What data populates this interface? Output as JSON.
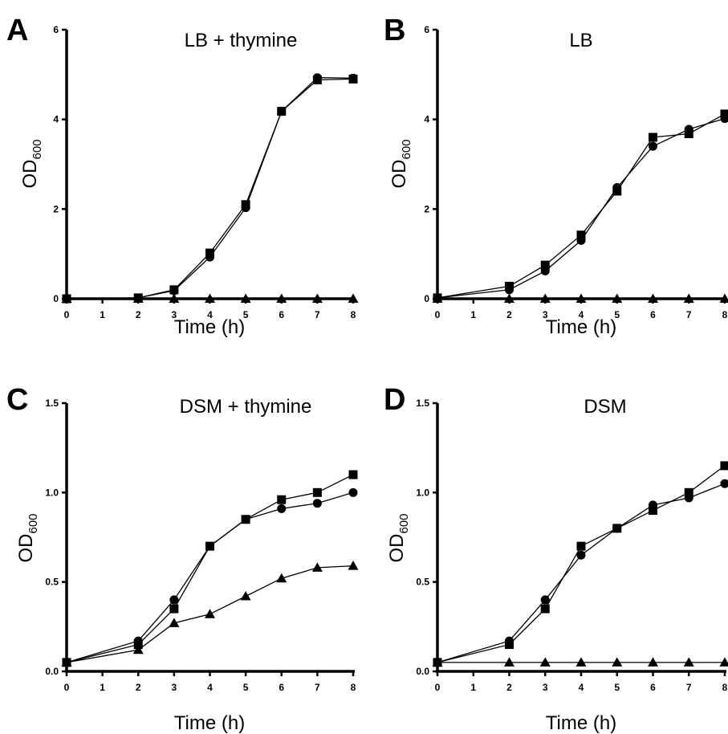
{
  "chart_data": [
    {
      "panel": "A",
      "type": "line",
      "title": "LB + thymine",
      "xlabel": "Time (h)",
      "ylabel": {
        "main": "OD",
        "sub": "600"
      },
      "xlim": [
        0,
        8
      ],
      "ylim": [
        0,
        6
      ],
      "xticks": [
        "0",
        "1",
        "2",
        "3",
        "4",
        "5",
        "6",
        "7",
        "8"
      ],
      "yticks": [
        "0",
        "2",
        "4",
        "6"
      ],
      "series": [
        {
          "marker": "circle",
          "x": [
            0,
            2,
            3,
            4,
            5,
            6,
            7,
            8
          ],
          "y": [
            0.0,
            0.02,
            0.18,
            0.93,
            2.03,
            4.18,
            4.93,
            4.92
          ]
        },
        {
          "marker": "square",
          "x": [
            0,
            2,
            3,
            4,
            5,
            6,
            7,
            8
          ],
          "y": [
            0.0,
            0.02,
            0.2,
            1.02,
            2.1,
            4.18,
            4.88,
            4.9
          ]
        },
        {
          "marker": "triangle",
          "x": [
            0,
            2,
            3,
            4,
            5,
            6,
            7,
            8
          ],
          "y": [
            0.0,
            0.0,
            0.0,
            0.0,
            0.0,
            0.0,
            0.0,
            0.0
          ]
        }
      ]
    },
    {
      "panel": "B",
      "type": "line",
      "title": "LB",
      "xlabel": "Time (h)",
      "ylabel": {
        "main": "OD",
        "sub": "600"
      },
      "xlim": [
        0,
        8
      ],
      "ylim": [
        0,
        6
      ],
      "xticks": [
        "0",
        "1",
        "2",
        "3",
        "4",
        "5",
        "6",
        "7",
        "8"
      ],
      "yticks": [
        "0",
        "2",
        "4",
        "6"
      ],
      "series": [
        {
          "marker": "circle",
          "x": [
            0,
            2,
            3,
            4,
            5,
            6,
            7,
            8
          ],
          "y": [
            0.02,
            0.2,
            0.62,
            1.3,
            2.48,
            3.4,
            3.78,
            4.02
          ]
        },
        {
          "marker": "square",
          "x": [
            0,
            2,
            3,
            4,
            5,
            6,
            7,
            8
          ],
          "y": [
            0.02,
            0.28,
            0.75,
            1.42,
            2.4,
            3.6,
            3.68,
            4.12
          ]
        },
        {
          "marker": "triangle",
          "x": [
            0,
            2,
            3,
            4,
            5,
            6,
            7,
            8
          ],
          "y": [
            0.0,
            0.0,
            0.0,
            0.0,
            0.0,
            0.0,
            0.0,
            0.0
          ]
        }
      ]
    },
    {
      "panel": "C",
      "type": "line",
      "title": "DSM + thymine",
      "xlabel": "Time (h)",
      "ylabel": {
        "main": "OD",
        "sub": "600"
      },
      "xlim": [
        0,
        8
      ],
      "ylim": [
        0,
        1.5
      ],
      "xticks": [
        "0",
        "1",
        "2",
        "3",
        "4",
        "5",
        "6",
        "7",
        "8"
      ],
      "yticks": [
        "0.0",
        "0.5",
        "1.0",
        "1.5"
      ],
      "series": [
        {
          "marker": "circle",
          "x": [
            0,
            2,
            3,
            4,
            5,
            6,
            7,
            8
          ],
          "y": [
            0.05,
            0.17,
            0.4,
            0.7,
            0.85,
            0.91,
            0.94,
            1.0
          ]
        },
        {
          "marker": "square",
          "x": [
            0,
            2,
            3,
            4,
            5,
            6,
            7,
            8
          ],
          "y": [
            0.05,
            0.15,
            0.35,
            0.7,
            0.85,
            0.96,
            1.0,
            1.1
          ]
        },
        {
          "marker": "triangle",
          "x": [
            0,
            2,
            3,
            4,
            5,
            6,
            7,
            8
          ],
          "y": [
            0.05,
            0.12,
            0.27,
            0.32,
            0.42,
            0.52,
            0.58,
            0.59
          ]
        }
      ]
    },
    {
      "panel": "D",
      "type": "line",
      "title": "DSM",
      "xlabel": "Time (h)",
      "ylabel": {
        "main": "OD",
        "sub": "600"
      },
      "xlim": [
        0,
        8
      ],
      "ylim": [
        0,
        1.5
      ],
      "xticks": [
        "0",
        "1",
        "2",
        "3",
        "4",
        "5",
        "6",
        "7",
        "8"
      ],
      "yticks": [
        "0.0",
        "0.5",
        "1.0",
        "1.5"
      ],
      "series": [
        {
          "marker": "circle",
          "x": [
            0,
            2,
            3,
            4,
            5,
            6,
            7,
            8
          ],
          "y": [
            0.05,
            0.17,
            0.4,
            0.65,
            0.8,
            0.93,
            0.97,
            1.05
          ]
        },
        {
          "marker": "square",
          "x": [
            0,
            2,
            3,
            4,
            5,
            6,
            7,
            8
          ],
          "y": [
            0.05,
            0.15,
            0.35,
            0.7,
            0.8,
            0.9,
            1.0,
            1.15
          ]
        },
        {
          "marker": "triangle",
          "x": [
            0,
            2,
            3,
            4,
            5,
            6,
            7,
            8
          ],
          "y": [
            0.05,
            0.05,
            0.05,
            0.05,
            0.05,
            0.05,
            0.05,
            0.05
          ]
        }
      ]
    }
  ]
}
